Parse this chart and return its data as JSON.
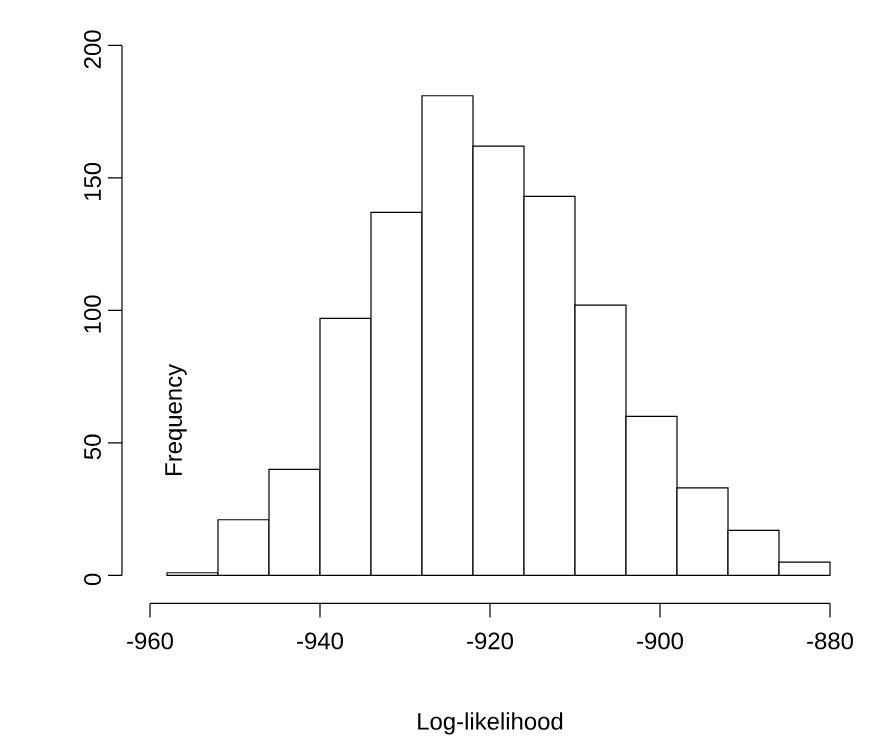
{
  "chart_data": {
    "type": "histogram",
    "xlabel": "Log-likelihood",
    "ylabel": "Frequency",
    "bins": [
      -958,
      -952,
      -946,
      -940,
      -934,
      -928,
      -922,
      -916,
      -910,
      -904,
      -898,
      -892,
      -886,
      -880
    ],
    "values": [
      1,
      21,
      40,
      97,
      137,
      181,
      162,
      143,
      102,
      60,
      33,
      17,
      5
    ],
    "color": "#ffffff",
    "xlim": [
      -960,
      -880
    ],
    "xticks": [
      -960,
      -940,
      -920,
      -900,
      -880
    ],
    "ylim": [
      0,
      200
    ],
    "yticks": [
      0,
      50,
      100,
      150,
      200
    ],
    "grid": false
  }
}
